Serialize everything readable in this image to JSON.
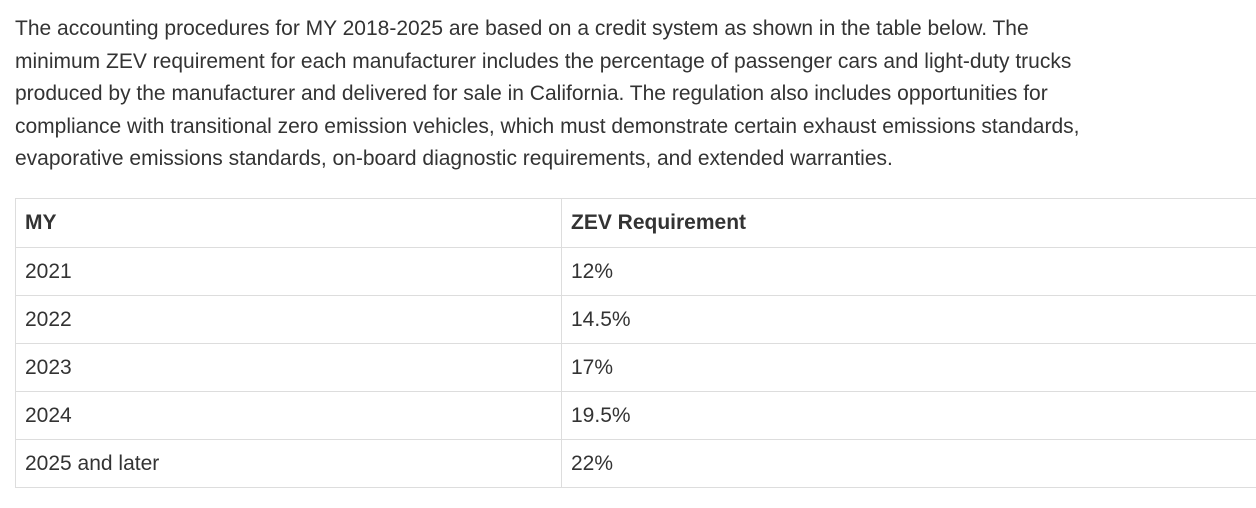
{
  "intro": {
    "lines": [
      "The accounting procedures for MY 2018-2025 are based on a credit system as shown in the table below. The",
      "minimum ZEV requirement for each manufacturer includes the percentage of passenger cars and light-duty trucks",
      "produced by the manufacturer and delivered for sale in California. The regulation also includes opportunities for",
      "compliance with transitional zero emission vehicles, which must demonstrate certain exhaust emissions standards,",
      "evaporative emissions standards, on-board diagnostic requirements, and extended warranties."
    ]
  },
  "table": {
    "headers": [
      "MY",
      "ZEV Requirement"
    ],
    "rows": [
      [
        "2021",
        "12%"
      ],
      [
        "2022",
        "14.5%"
      ],
      [
        "2023",
        "17%"
      ],
      [
        "2024",
        "19.5%"
      ],
      [
        "2025 and later",
        "22%"
      ]
    ]
  }
}
